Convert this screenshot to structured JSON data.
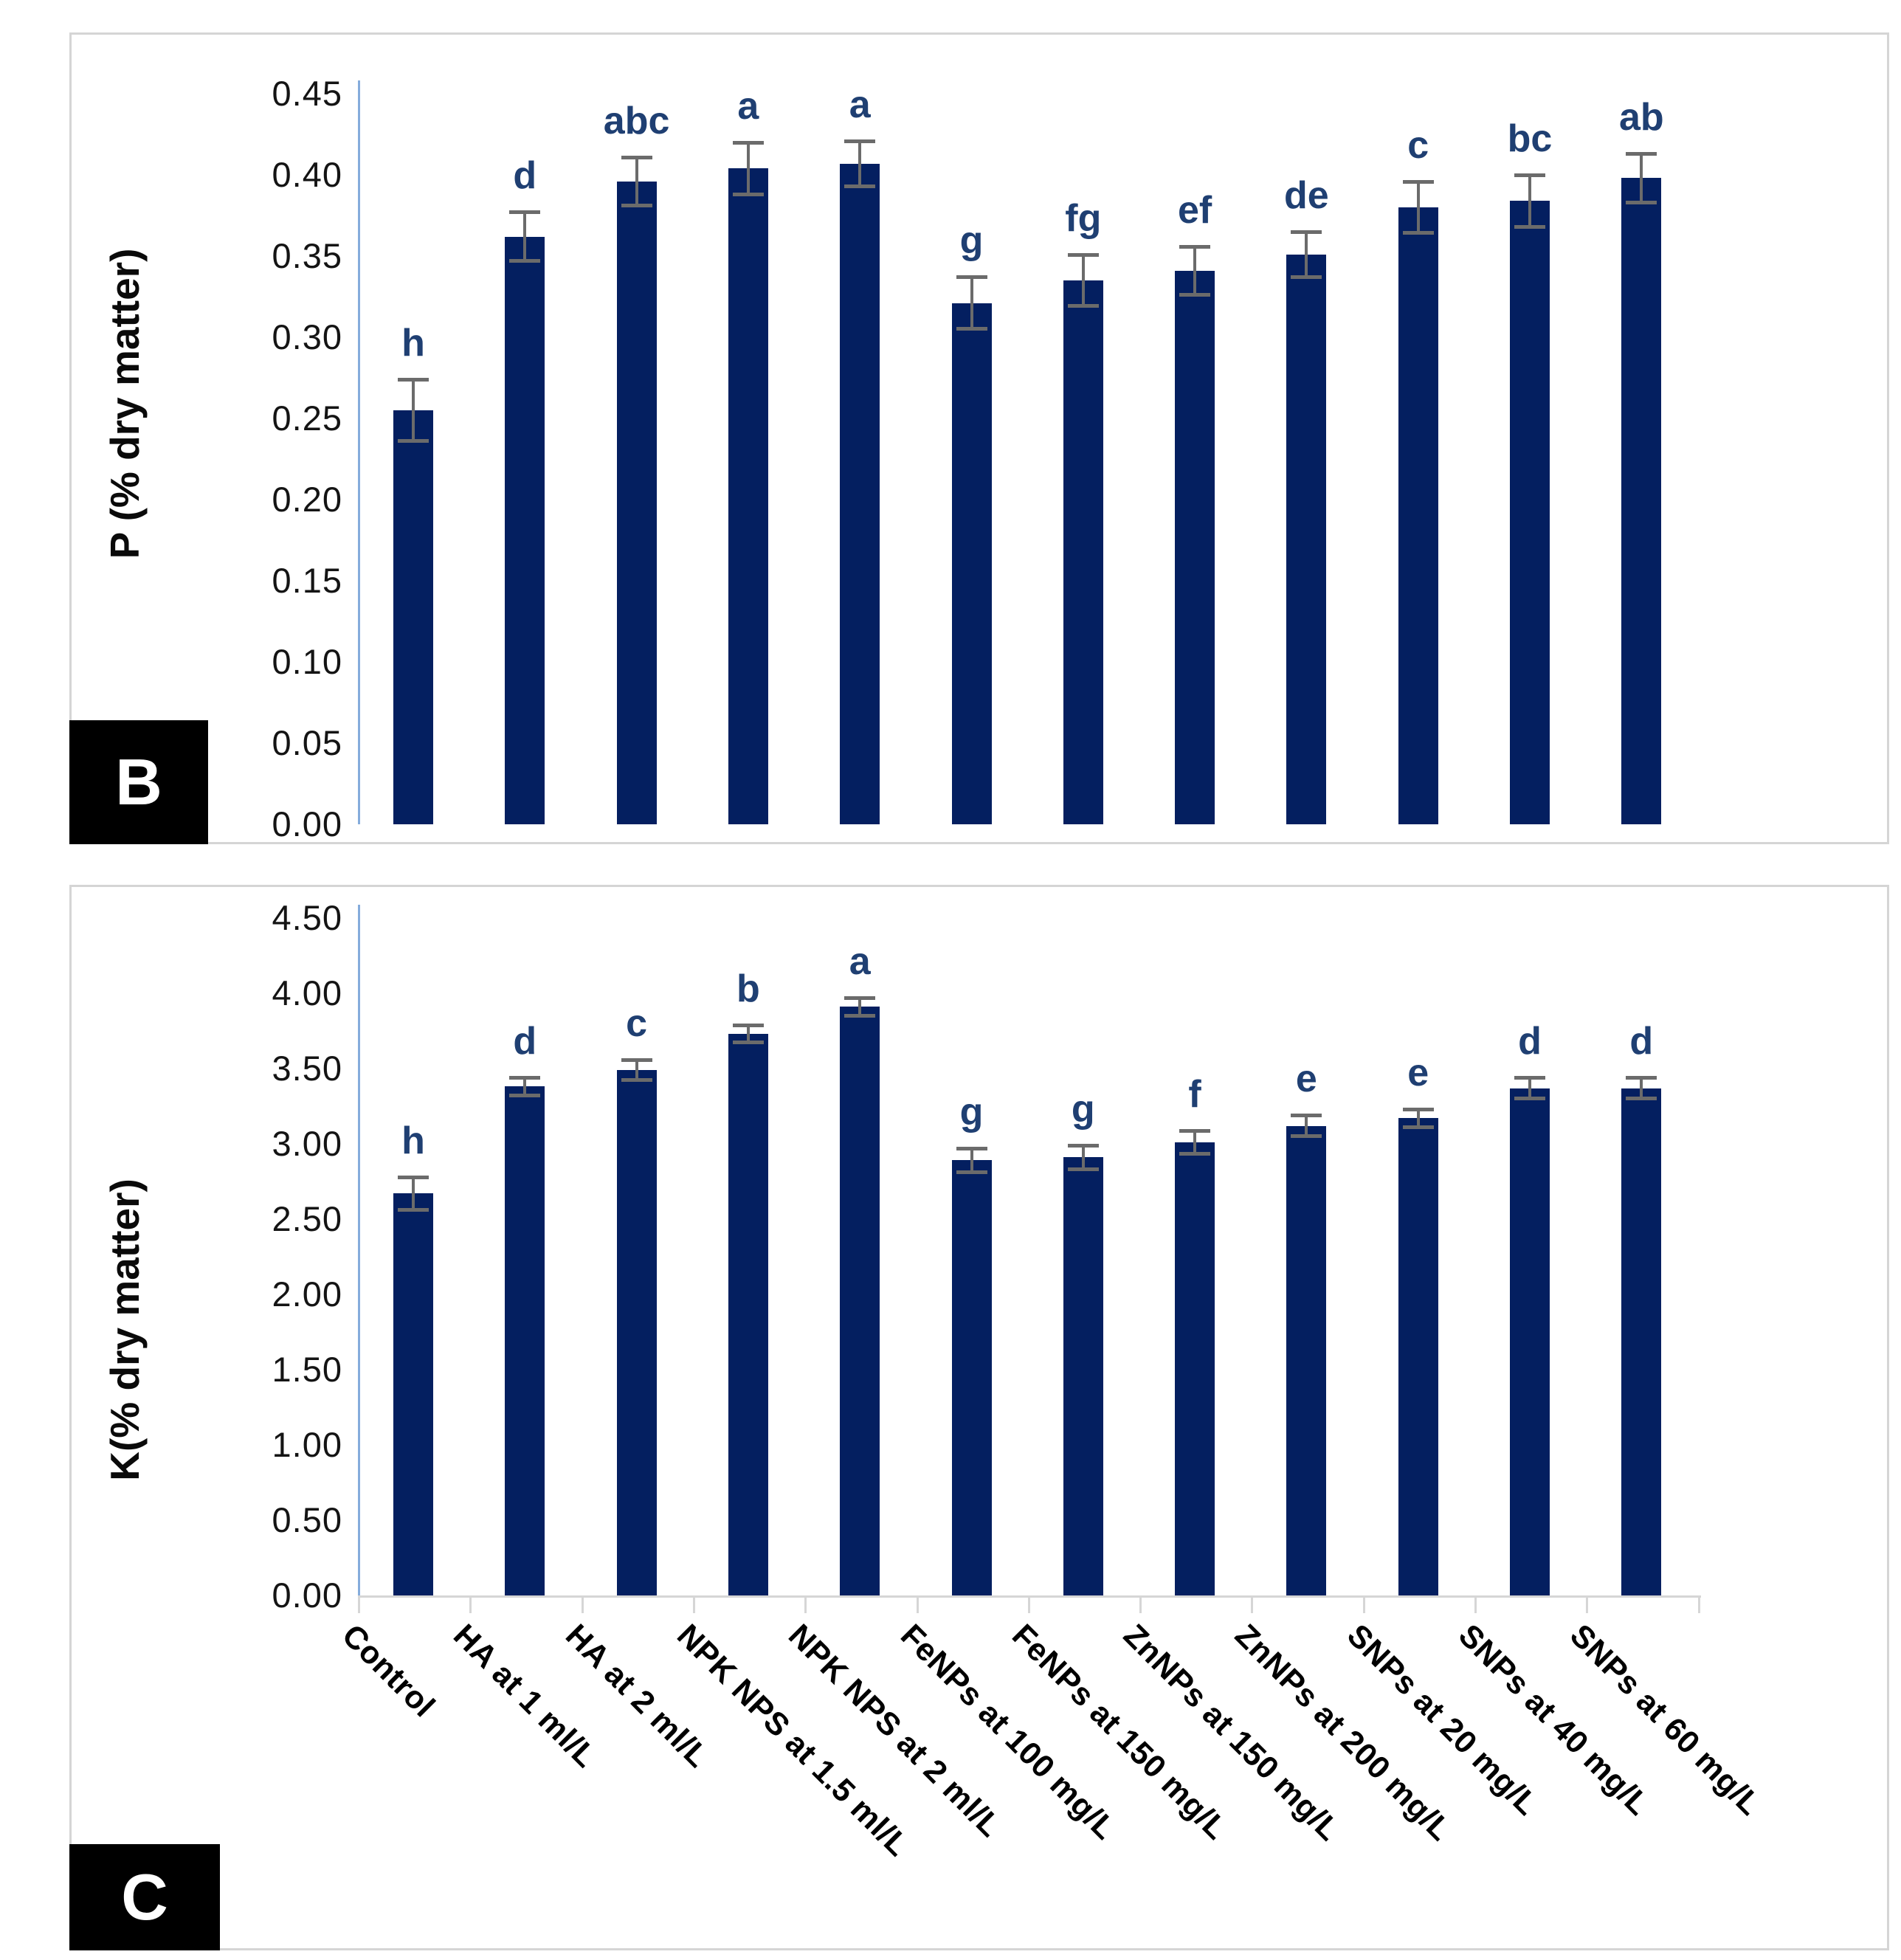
{
  "figure": {
    "description": "Two stacked vertical bar chart panels labeled B and C showing nutrient content under different treatments",
    "panel_b_label": "B",
    "panel_c_label": "C"
  },
  "colors": {
    "bar": "#041f60",
    "sig_letter": "#1f3f72",
    "error_bar": "#6b6b6b",
    "y_axis_line": "#85acdc",
    "x_axis_line": "#d6d6d6",
    "panel_border": "#d5d5d5",
    "tick_text": "#141414",
    "label_box_bg": "#000000",
    "label_box_text": "#ffffff"
  },
  "chart_data": [
    {
      "type": "bar",
      "panel_label": "B",
      "title": "",
      "xlabel": "",
      "ylabel": "P (% dry matter)",
      "ylim": [
        0,
        0.45
      ],
      "ytick_step": 0.05,
      "ytick_labels": [
        "0.00",
        "0.05",
        "0.10",
        "0.15",
        "0.20",
        "0.25",
        "0.30",
        "0.35",
        "0.40",
        "0.45"
      ],
      "grid": false,
      "legend": "none",
      "x_labels_visible": false,
      "categories": [
        "Control",
        "HA at 1 ml/L",
        "HA at 2 ml/L",
        "NPK NPS at 1.5 ml/L",
        "NPK NPS at 2 ml/L",
        "FeNPs at 100 mg/L",
        "FeNPs at 150 mg/L",
        "ZnNPs at 150 mg/L",
        "ZnNPs at 200 mg/L",
        "SNPs at 20 mg/L",
        "SNPs at 40 mg/L",
        "SNPs at 60 mg/L"
      ],
      "values": [
        0.255,
        0.362,
        0.396,
        0.404,
        0.407,
        0.321,
        0.335,
        0.341,
        0.351,
        0.38,
        0.384,
        0.398
      ],
      "errors": [
        0.02,
        0.016,
        0.016,
        0.017,
        0.015,
        0.017,
        0.017,
        0.016,
        0.015,
        0.017,
        0.017,
        0.016
      ],
      "sig_letters": [
        "h",
        "d",
        "abc",
        "a",
        "a",
        "g",
        "fg",
        "ef",
        "de",
        "c",
        "bc",
        "ab"
      ]
    },
    {
      "type": "bar",
      "panel_label": "C",
      "title": "",
      "xlabel": "",
      "ylabel": "K(% dry matter)",
      "ylim": [
        0,
        4.5
      ],
      "ytick_step": 0.5,
      "ytick_labels": [
        "0.00",
        "0.50",
        "1.00",
        "1.50",
        "2.00",
        "2.50",
        "3.00",
        "3.50",
        "4.00",
        "4.50"
      ],
      "grid": false,
      "legend": "none",
      "x_labels_visible": true,
      "categories": [
        "Control",
        "HA at 1 ml/L",
        "HA at 2 ml/L",
        "NPK NPS at 1.5 ml/L",
        "NPK NPS at 2 ml/L",
        "FeNPs at 100 mg/L",
        "FeNPs at 150 mg/L",
        "ZnNPs at 150 mg/L",
        "ZnNPs at 200 mg/L",
        "SNPs at 20 mg/L",
        "SNPs at 40 mg/L",
        "SNPs at 60 mg/L"
      ],
      "values": [
        2.67,
        3.38,
        3.49,
        3.73,
        3.91,
        2.89,
        2.91,
        3.01,
        3.12,
        3.17,
        3.37,
        3.37
      ],
      "errors": [
        0.12,
        0.07,
        0.08,
        0.07,
        0.07,
        0.09,
        0.09,
        0.09,
        0.08,
        0.07,
        0.08,
        0.08
      ],
      "sig_letters": [
        "h",
        "d",
        "c",
        "b",
        "a",
        "g",
        "g",
        "f",
        "e",
        "e",
        "d",
        "d"
      ]
    }
  ]
}
